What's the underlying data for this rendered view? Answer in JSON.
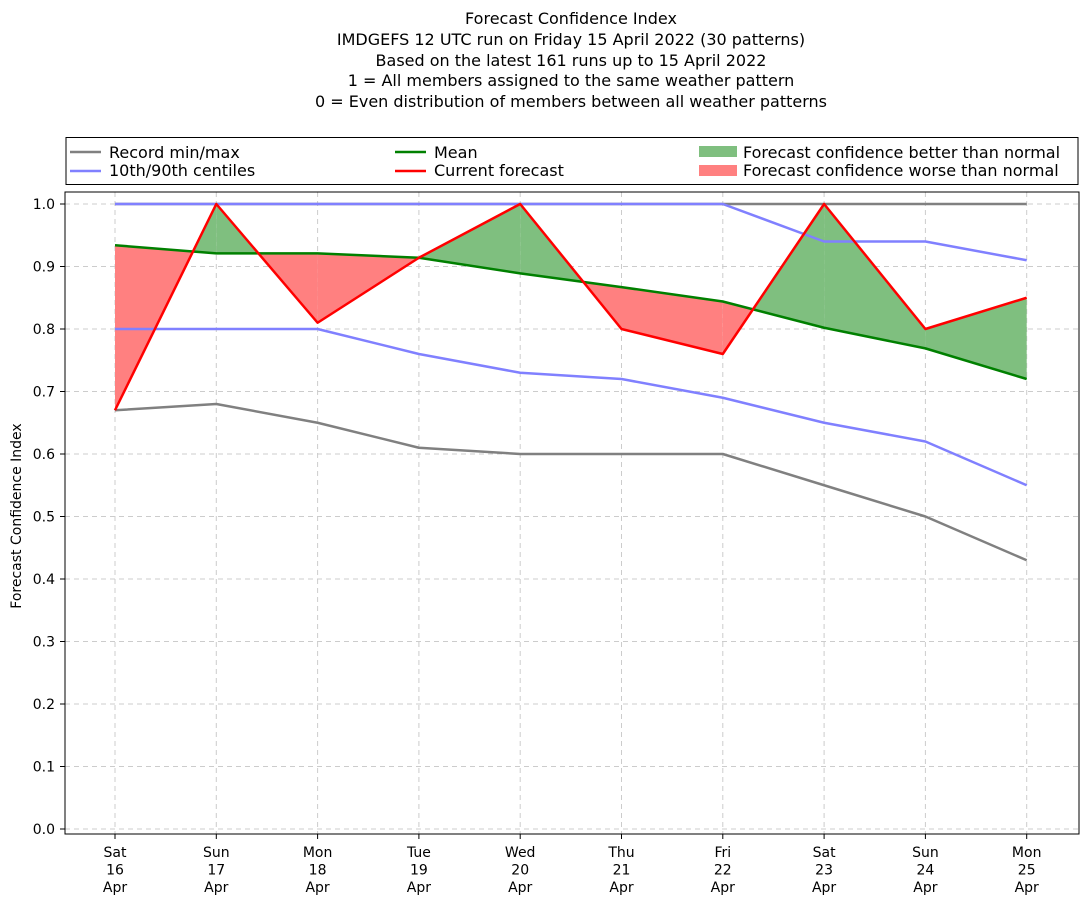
{
  "chart_data": {
    "type": "line",
    "title_lines": [
      "Forecast Confidence Index",
      "IMDGEFS 12 UTC run on Friday 15 April 2022 (30 patterns)",
      "Based on the latest 161 runs up to 15 April 2022",
      "1 = All members assigned to the same weather pattern",
      "0 = Even distribution of members between all weather patterns"
    ],
    "ylabel": "Forecast Confidence Index",
    "ylim": [
      0.0,
      1.0
    ],
    "yticks": [
      "0.0",
      "0.1",
      "0.2",
      "0.3",
      "0.4",
      "0.5",
      "0.6",
      "0.7",
      "0.8",
      "0.9",
      "1.0"
    ],
    "categories": [
      [
        "Sat",
        "16",
        "Apr"
      ],
      [
        "Sun",
        "17",
        "Apr"
      ],
      [
        "Mon",
        "18",
        "Apr"
      ],
      [
        "Tue",
        "19",
        "Apr"
      ],
      [
        "Wed",
        "20",
        "Apr"
      ],
      [
        "Thu",
        "21",
        "Apr"
      ],
      [
        "Fri",
        "22",
        "Apr"
      ],
      [
        "Sat",
        "23",
        "Apr"
      ],
      [
        "Sun",
        "24",
        "Apr"
      ],
      [
        "Mon",
        "25",
        "Apr"
      ]
    ],
    "grid": true,
    "legend_placement": "top, above plot",
    "legend": [
      {
        "label": "Record min/max",
        "kind": "line",
        "color": "#808080"
      },
      {
        "label": "Mean",
        "kind": "line",
        "color": "#008000"
      },
      {
        "label": "Forecast confidence better than normal",
        "kind": "patch",
        "color": "#7fbf7f"
      },
      {
        "label": "10th/90th centiles",
        "kind": "line",
        "color": "#8080ff"
      },
      {
        "label": "Current forecast",
        "kind": "line",
        "color": "#ff0000"
      },
      {
        "label": "Forecast confidence worse than normal",
        "kind": "patch",
        "color": "#ff8080"
      }
    ],
    "series": [
      {
        "name": "Record min/max",
        "role": "record_max",
        "color": "#808080",
        "values": [
          1.0,
          1.0,
          1.0,
          1.0,
          1.0,
          1.0,
          1.0,
          1.0,
          1.0,
          1.0
        ]
      },
      {
        "name": "Record min/max",
        "role": "record_min",
        "color": "#808080",
        "values": [
          0.67,
          0.68,
          0.65,
          0.61,
          0.6,
          0.6,
          0.6,
          0.55,
          0.5,
          0.43
        ]
      },
      {
        "name": "10th/90th centiles",
        "role": "p90",
        "color": "#8080ff",
        "values": [
          1.0,
          1.0,
          1.0,
          1.0,
          1.0,
          1.0,
          1.0,
          0.94,
          0.94,
          0.91
        ]
      },
      {
        "name": "10th/90th centiles",
        "role": "p10",
        "color": "#8080ff",
        "values": [
          0.8,
          0.8,
          0.8,
          0.76,
          0.73,
          0.72,
          0.69,
          0.65,
          0.62,
          0.55
        ]
      },
      {
        "name": "Mean",
        "role": "mean",
        "color": "#008000",
        "values": [
          0.934,
          0.921,
          0.921,
          0.914,
          0.889,
          0.867,
          0.844,
          0.802,
          0.769,
          0.72
        ]
      },
      {
        "name": "Current forecast",
        "role": "current",
        "color": "#ff0000",
        "values": [
          0.67,
          1.0,
          0.81,
          0.914,
          1.0,
          0.8,
          0.76,
          1.0,
          0.8,
          0.85
        ]
      }
    ],
    "fills": {
      "better_color": "#7fbf7f",
      "worse_color": "#ff8080"
    }
  }
}
